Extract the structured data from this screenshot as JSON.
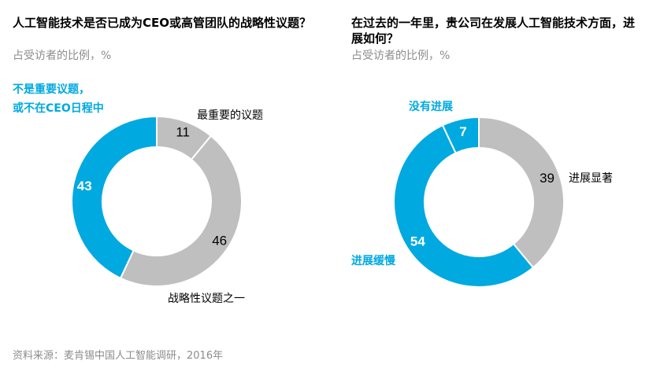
{
  "colors": {
    "blue": "#00a9e0",
    "gray": "#bfbfbf",
    "text_gray": "#8c8c8c"
  },
  "chart_data": [
    {
      "type": "pie",
      "donut": true,
      "title": "人工智能技术是否已成为CEO或高管团队的战略性议题？",
      "subtitle": "占受访者的比例，%",
      "slices": [
        {
          "label": "最重要的议题",
          "value": 11,
          "color": "#bfbfbf"
        },
        {
          "label": "战略性议题之一",
          "value": 46,
          "color": "#bfbfbf"
        },
        {
          "label": "不是重要议题，或不在CEO日程中",
          "value": 43,
          "color": "#00a9e0"
        }
      ]
    },
    {
      "type": "pie",
      "donut": true,
      "title": "在过去的一年里，贵公司在发展人工智能技术方面，进展如何？",
      "subtitle": "占受访者的比例，%",
      "slices": [
        {
          "label": "进展显著",
          "value": 39,
          "color": "#bfbfbf"
        },
        {
          "label": "进展缓慢",
          "value": 54,
          "color": "#00a9e0"
        },
        {
          "label": "没有进展",
          "value": 7,
          "color": "#00a9e0"
        }
      ]
    }
  ],
  "labels": {
    "left_blue_line1": "不是重要议题，",
    "left_blue_line2": "或不在CEO日程中",
    "right_blue_top": "没有进展",
    "right_blue_bottom": "进展缓慢"
  },
  "footer": "资料来源：麦肯锡中国人工智能调研，2016年"
}
